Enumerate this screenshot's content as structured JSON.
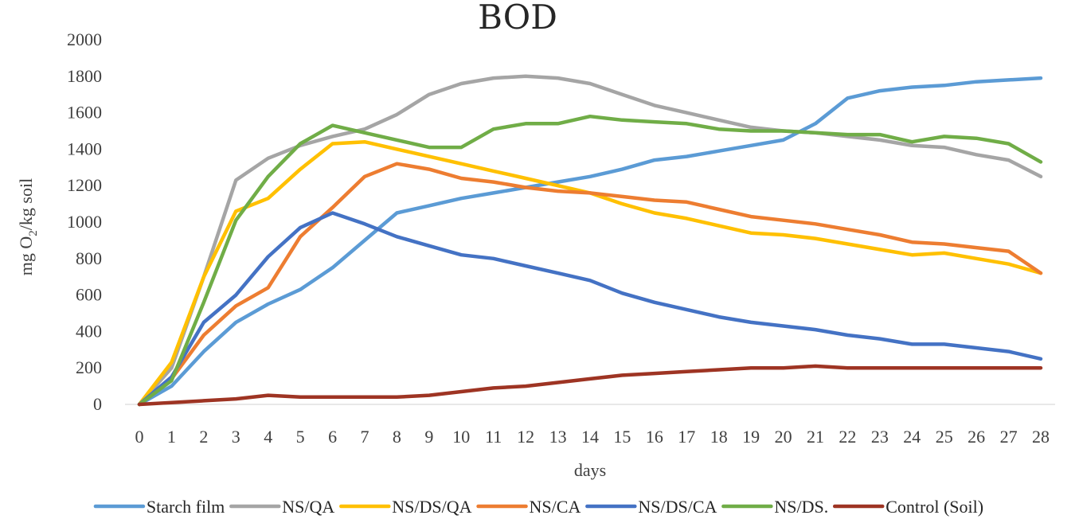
{
  "chart_data": {
    "type": "line",
    "title": "BOD",
    "xlabel": "days",
    "ylabel_main": "mg O",
    "ylabel_sub": "2",
    "ylabel_rest": "/kg soil",
    "ylim": [
      0,
      2000
    ],
    "yticks": [
      0,
      200,
      400,
      600,
      800,
      1000,
      1200,
      1400,
      1600,
      1800,
      2000
    ],
    "x": [
      0,
      1,
      2,
      3,
      4,
      5,
      6,
      7,
      8,
      9,
      10,
      11,
      12,
      13,
      14,
      15,
      16,
      17,
      18,
      19,
      20,
      21,
      22,
      23,
      24,
      25,
      26,
      27,
      28
    ],
    "grid": false,
    "legend_position": "bottom",
    "series": [
      {
        "name": "Starch film",
        "color": "#5B9BD5",
        "values": [
          0,
          100,
          290,
          450,
          550,
          630,
          750,
          900,
          1050,
          1090,
          1130,
          1160,
          1190,
          1220,
          1250,
          1290,
          1340,
          1360,
          1390,
          1420,
          1450,
          1540,
          1680,
          1720,
          1740,
          1750,
          1770,
          1780,
          1790
        ]
      },
      {
        "name": "NS/QA",
        "color": "#A5A5A5",
        "values": [
          0,
          200,
          700,
          1230,
          1350,
          1420,
          1470,
          1510,
          1590,
          1700,
          1760,
          1790,
          1800,
          1790,
          1760,
          1700,
          1640,
          1600,
          1560,
          1520,
          1500,
          1490,
          1470,
          1450,
          1420,
          1410,
          1370,
          1340,
          1250
        ]
      },
      {
        "name": "NS/DS/QA",
        "color": "#FFC000",
        "values": [
          0,
          230,
          700,
          1060,
          1130,
          1290,
          1430,
          1440,
          1400,
          1360,
          1320,
          1280,
          1240,
          1200,
          1160,
          1100,
          1050,
          1020,
          980,
          940,
          930,
          910,
          880,
          850,
          820,
          830,
          800,
          770,
          720
        ]
      },
      {
        "name": "NS/CA",
        "color": "#ED7D31",
        "values": [
          0,
          140,
          380,
          540,
          640,
          920,
          1080,
          1250,
          1320,
          1290,
          1240,
          1220,
          1190,
          1170,
          1160,
          1140,
          1120,
          1110,
          1070,
          1030,
          1010,
          990,
          960,
          930,
          890,
          880,
          860,
          840,
          720
        ]
      },
      {
        "name": "NS/DS/CA",
        "color": "#4472C4",
        "values": [
          0,
          150,
          450,
          600,
          810,
          970,
          1050,
          990,
          920,
          870,
          820,
          800,
          760,
          720,
          680,
          610,
          560,
          520,
          480,
          450,
          430,
          410,
          380,
          360,
          330,
          330,
          310,
          290,
          250
        ]
      },
      {
        "name": "NS/DS.",
        "color": "#70AD47",
        "values": [
          0,
          130,
          560,
          1010,
          1250,
          1430,
          1530,
          1490,
          1450,
          1410,
          1410,
          1510,
          1540,
          1540,
          1580,
          1560,
          1550,
          1540,
          1510,
          1500,
          1500,
          1490,
          1480,
          1480,
          1440,
          1470,
          1460,
          1430,
          1330
        ]
      },
      {
        "name": "Control (Soil)",
        "color": "#9E3423",
        "values": [
          0,
          10,
          20,
          30,
          50,
          40,
          40,
          40,
          40,
          50,
          70,
          90,
          100,
          120,
          140,
          160,
          170,
          180,
          190,
          200,
          200,
          210,
          200,
          200,
          200,
          200,
          200,
          200,
          200
        ]
      }
    ]
  }
}
